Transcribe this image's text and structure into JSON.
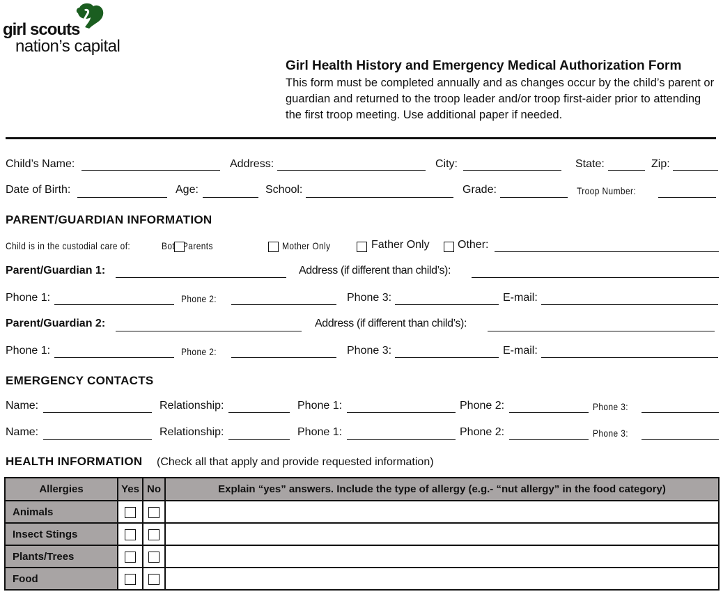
{
  "logo": {
    "line1": "girl scouts",
    "line2": "nation’s capital",
    "color": "#1b5e20"
  },
  "form": {
    "title": "Girl Health History and Emergency Medical Authorization Form",
    "intro": "This form must be completed annually and as changes occur by the child’s parent or guardian and returned to the troop leader and/or troop first-aider prior to attending the first troop meeting. Use additional paper if needed."
  },
  "child": {
    "name": "Child’s Name:",
    "address": "Address:",
    "city": "City:",
    "state": "State:",
    "zip": "Zip:",
    "dob": "Date of Birth:",
    "age": "Age:",
    "school": "School:",
    "grade": "Grade:",
    "troop": "Troop Number:"
  },
  "parent": {
    "heading": "PARENT/GUARDIAN INFORMATION",
    "custodial": "Child is in the custodial care of:",
    "options": [
      "Both Parents",
      "Mother Only",
      "Father Only",
      "Other:"
    ],
    "pg1": "Parent/Guardian 1:",
    "pg2": "Parent/Guardian 2:",
    "address": "Address (if different than child’s):",
    "phone1": "Phone 1:",
    "phone2": "Phone 2:",
    "phone3": "Phone 3:",
    "email": "E-mail:"
  },
  "emergency": {
    "heading": "EMERGENCY CONTACTS",
    "name": "Name:",
    "relationship": "Relationship:",
    "phone1": "Phone 1:",
    "phone2": "Phone 2:",
    "phone3": "Phone 3:"
  },
  "health": {
    "heading": "HEALTH INFORMATION",
    "note": "(Check all that apply and provide requested information)",
    "columns": [
      "Allergies",
      "Yes",
      "No",
      "Explain “yes” answers. Include the type of allergy (e.g.- “nut allergy” in the food category)"
    ],
    "rows": [
      "Animals",
      "Insect Stings",
      "Plants/Trees",
      "Food"
    ],
    "header_color": "#a8a4a4"
  }
}
